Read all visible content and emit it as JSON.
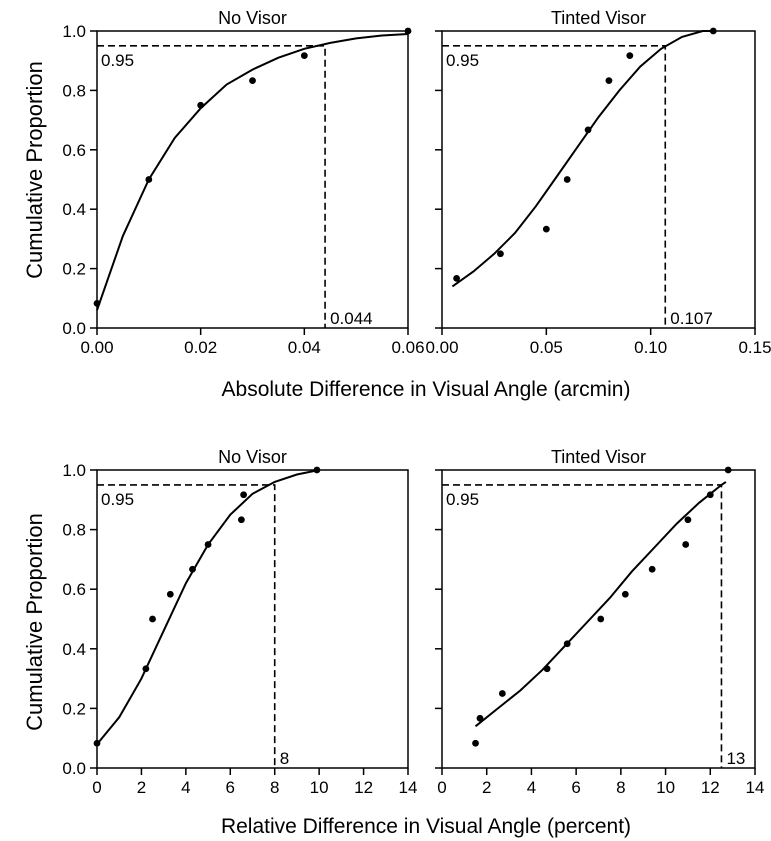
{
  "figure": {
    "top_ylabel": "Cumulative Proportion",
    "bottom_ylabel": "Cumulative Proportion",
    "top_xlabel": "Absolute Difference in Visual Angle (arcmin)",
    "bottom_xlabel": "Relative Difference in Visual Angle (percent)"
  },
  "chart_data": [
    {
      "type": "scatter",
      "title": "No Visor",
      "xlabel": "Absolute Difference in Visual Angle (arcmin)",
      "ylabel": "Cumulative Proportion",
      "xlim": [
        0,
        0.06
      ],
      "ylim": [
        0,
        1.0
      ],
      "xticks": [
        "0.00",
        "0.02",
        "0.04",
        "0.06"
      ],
      "yticks": [
        "0.0",
        "0.2",
        "0.4",
        "0.6",
        "0.8",
        "1.0"
      ],
      "points": [
        [
          0.0,
          0.083
        ],
        [
          0.01,
          0.5
        ],
        [
          0.02,
          0.75
        ],
        [
          0.03,
          0.833
        ],
        [
          0.04,
          0.917
        ],
        [
          0.06,
          1.0
        ]
      ],
      "fit_curve": {
        "x": [
          0.0,
          0.005,
          0.01,
          0.015,
          0.02,
          0.025,
          0.03,
          0.035,
          0.04,
          0.045,
          0.05,
          0.055,
          0.06
        ],
        "y": [
          0.06,
          0.31,
          0.5,
          0.64,
          0.74,
          0.82,
          0.87,
          0.91,
          0.94,
          0.96,
          0.975,
          0.985,
          0.99
        ]
      },
      "reference": {
        "y": 0.95,
        "x": 0.044,
        "y_label": "0.95",
        "x_label": "0.044"
      }
    },
    {
      "type": "scatter",
      "title": "Tinted Visor",
      "xlabel": "Absolute Difference in Visual Angle (arcmin)",
      "ylabel": "Cumulative Proportion",
      "xlim": [
        0,
        0.15
      ],
      "ylim": [
        0,
        1.0
      ],
      "xticks": [
        "0.00",
        "0.05",
        "0.10",
        "0.15"
      ],
      "yticks": [
        "0.0",
        "0.2",
        "0.4",
        "0.6",
        "0.8",
        "1.0"
      ],
      "points": [
        [
          0.007,
          0.167
        ],
        [
          0.028,
          0.25
        ],
        [
          0.05,
          0.333
        ],
        [
          0.06,
          0.5
        ],
        [
          0.07,
          0.667
        ],
        [
          0.08,
          0.833
        ],
        [
          0.09,
          0.917
        ],
        [
          0.13,
          1.0
        ]
      ],
      "fit_curve": {
        "x": [
          0.005,
          0.015,
          0.025,
          0.035,
          0.045,
          0.055,
          0.065,
          0.075,
          0.085,
          0.095,
          0.105,
          0.115,
          0.125,
          0.13
        ],
        "y": [
          0.14,
          0.19,
          0.25,
          0.32,
          0.41,
          0.51,
          0.61,
          0.71,
          0.8,
          0.88,
          0.94,
          0.98,
          1.0,
          1.0
        ]
      },
      "reference": {
        "y": 0.95,
        "x": 0.107,
        "y_label": "0.95",
        "x_label": "0.107"
      }
    },
    {
      "type": "scatter",
      "title": "No Visor",
      "xlabel": "Relative Difference in Visual Angle (percent)",
      "ylabel": "Cumulative Proportion",
      "xlim": [
        0,
        14
      ],
      "ylim": [
        0,
        1.0
      ],
      "xticks": [
        "0",
        "2",
        "4",
        "6",
        "8",
        "10",
        "12",
        "14"
      ],
      "yticks": [
        "0.0",
        "0.2",
        "0.4",
        "0.6",
        "0.8",
        "1.0"
      ],
      "points": [
        [
          0.0,
          0.083
        ],
        [
          2.2,
          0.333
        ],
        [
          2.5,
          0.5
        ],
        [
          3.3,
          0.583
        ],
        [
          4.3,
          0.667
        ],
        [
          5.0,
          0.75
        ],
        [
          6.5,
          0.833
        ],
        [
          6.6,
          0.917
        ],
        [
          9.9,
          1.0
        ]
      ],
      "fit_curve": {
        "x": [
          0,
          1,
          2,
          3,
          4,
          5,
          6,
          7,
          8,
          9,
          10
        ],
        "y": [
          0.08,
          0.17,
          0.3,
          0.46,
          0.62,
          0.75,
          0.85,
          0.92,
          0.96,
          0.985,
          1.0
        ]
      },
      "reference": {
        "y": 0.95,
        "x": 8,
        "y_label": "0.95",
        "x_label": "8"
      }
    },
    {
      "type": "scatter",
      "title": "Tinted Visor",
      "xlabel": "Relative Difference in Visual Angle (percent)",
      "ylabel": "Cumulative Proportion",
      "xlim": [
        0,
        14
      ],
      "ylim": [
        0,
        1.0
      ],
      "xticks": [
        "0",
        "2",
        "4",
        "6",
        "8",
        "10",
        "12",
        "14"
      ],
      "yticks": [
        "0.0",
        "0.2",
        "0.4",
        "0.6",
        "0.8",
        "1.0"
      ],
      "points": [
        [
          1.5,
          0.083
        ],
        [
          1.7,
          0.167
        ],
        [
          2.7,
          0.25
        ],
        [
          4.7,
          0.333
        ],
        [
          5.6,
          0.417
        ],
        [
          7.1,
          0.5
        ],
        [
          8.2,
          0.583
        ],
        [
          9.4,
          0.667
        ],
        [
          10.9,
          0.75
        ],
        [
          11.0,
          0.833
        ],
        [
          12.0,
          0.917
        ],
        [
          12.8,
          1.0
        ]
      ],
      "fit_curve": {
        "x": [
          1.5,
          2.5,
          3.5,
          4.5,
          5.5,
          6.5,
          7.5,
          8.5,
          9.5,
          10.5,
          11.5,
          12.5,
          12.7
        ],
        "y": [
          0.14,
          0.2,
          0.26,
          0.33,
          0.41,
          0.49,
          0.57,
          0.66,
          0.74,
          0.82,
          0.89,
          0.95,
          0.96
        ]
      },
      "reference": {
        "y": 0.95,
        "x": 12.5,
        "y_label": "0.95",
        "x_label": "13"
      }
    }
  ]
}
